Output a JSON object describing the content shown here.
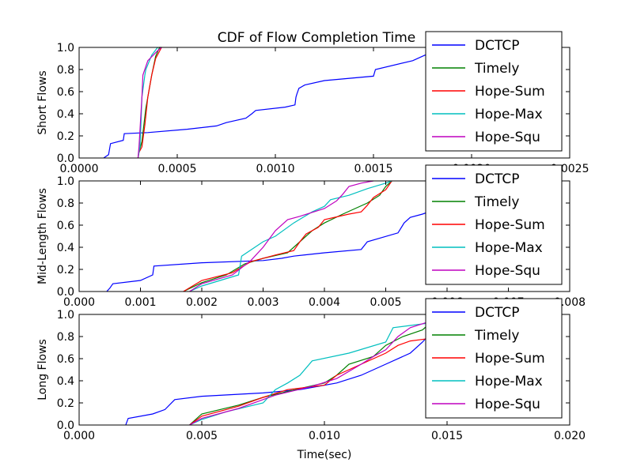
{
  "figure": {
    "title": "CDF of Flow Completion Time",
    "xlabel": "Time(sec)"
  },
  "chart_data": [
    {
      "type": "line",
      "ylabel": "Short Flows",
      "xlim": [
        0,
        0.0025
      ],
      "ylim": [
        0,
        1.0
      ],
      "xticks": [
        "0.0000",
        "0.0005",
        "0.0010",
        "0.0015",
        "0.0020",
        "0.0025"
      ],
      "xtick_values": [
        0,
        0.0005,
        0.001,
        0.0015,
        0.002,
        0.0025
      ],
      "yticks": [
        "0.0",
        "0.2",
        "0.4",
        "0.6",
        "0.8",
        "1.0"
      ],
      "ytick_values": [
        0,
        0.2,
        0.4,
        0.6,
        0.8,
        1.0
      ],
      "legend_position": "top-right",
      "grid": false,
      "series": [
        {
          "name": "DCTCP",
          "color": "#0000ff",
          "points": [
            [
              0.000125,
              0
            ],
            [
              0.00015,
              0.03
            ],
            [
              0.00016,
              0.13
            ],
            [
              0.000225,
              0.16
            ],
            [
              0.00023,
              0.22
            ],
            [
              0.00035,
              0.23
            ],
            [
              0.00055,
              0.26
            ],
            [
              0.0007,
              0.29
            ],
            [
              0.00075,
              0.32
            ],
            [
              0.00085,
              0.36
            ],
            [
              0.00088,
              0.4
            ],
            [
              0.0009,
              0.43
            ],
            [
              0.00105,
              0.46
            ],
            [
              0.0011,
              0.48
            ],
            [
              0.001105,
              0.55
            ],
            [
              0.00111,
              0.58
            ],
            [
              0.00112,
              0.63
            ],
            [
              0.00115,
              0.66
            ],
            [
              0.00125,
              0.7
            ],
            [
              0.0015,
              0.74
            ],
            [
              0.00151,
              0.8
            ],
            [
              0.0017,
              0.88
            ],
            [
              0.00175,
              0.92
            ],
            [
              0.0018,
              0.96
            ]
          ]
        },
        {
          "name": "Timely",
          "color": "#008000",
          "points": [
            [
              0.0003,
              0
            ],
            [
              0.000305,
              0.05
            ],
            [
              0.00032,
              0.15
            ],
            [
              0.00034,
              0.45
            ],
            [
              0.00037,
              0.75
            ],
            [
              0.00039,
              0.92
            ],
            [
              0.00041,
              1.0
            ],
            [
              0.00042,
              1.0
            ]
          ]
        },
        {
          "name": "Hope-Sum",
          "color": "#ff0000",
          "points": [
            [
              0.0003,
              0
            ],
            [
              0.000305,
              0.05
            ],
            [
              0.00032,
              0.1
            ],
            [
              0.000335,
              0.3
            ],
            [
              0.00035,
              0.55
            ],
            [
              0.00037,
              0.75
            ],
            [
              0.00039,
              0.9
            ],
            [
              0.00042,
              1.0
            ]
          ]
        },
        {
          "name": "Hope-Max",
          "color": "#00bfbf",
          "points": [
            [
              0.0003,
              0
            ],
            [
              0.00031,
              0.1
            ],
            [
              0.000315,
              0.3
            ],
            [
              0.00032,
              0.55
            ],
            [
              0.000335,
              0.75
            ],
            [
              0.00034,
              0.8
            ],
            [
              0.00037,
              0.93
            ],
            [
              0.0004,
              1.0
            ]
          ]
        },
        {
          "name": "Hope-Squ",
          "color": "#bf00bf",
          "points": [
            [
              0.0003,
              0
            ],
            [
              0.000305,
              0.1
            ],
            [
              0.00031,
              0.25
            ],
            [
              0.00032,
              0.55
            ],
            [
              0.000325,
              0.75
            ],
            [
              0.00035,
              0.88
            ],
            [
              0.0004,
              0.97
            ],
            [
              0.00042,
              1.0
            ]
          ]
        }
      ]
    },
    {
      "type": "line",
      "ylabel": "Mid-Length Flows",
      "xlim": [
        0,
        0.008
      ],
      "ylim": [
        0,
        1.0
      ],
      "xticks": [
        "0.000",
        "0.001",
        "0.002",
        "0.003",
        "0.004",
        "0.005",
        "0.006",
        "0.007",
        "0.008"
      ],
      "xtick_values": [
        0,
        0.001,
        0.002,
        0.003,
        0.004,
        0.005,
        0.006,
        0.007,
        0.008
      ],
      "yticks": [
        "0.0",
        "0.2",
        "0.4",
        "0.6",
        "0.8",
        "1.0"
      ],
      "ytick_values": [
        0,
        0.2,
        0.4,
        0.6,
        0.8,
        1.0
      ],
      "legend_position": "top-right",
      "grid": false,
      "series": [
        {
          "name": "DCTCP",
          "color": "#0000ff",
          "points": [
            [
              0.00045,
              0
            ],
            [
              0.0005,
              0.03
            ],
            [
              0.00055,
              0.07
            ],
            [
              0.001,
              0.1
            ],
            [
              0.0012,
              0.15
            ],
            [
              0.00122,
              0.23
            ],
            [
              0.002,
              0.26
            ],
            [
              0.003,
              0.28
            ],
            [
              0.0033,
              0.3
            ],
            [
              0.0035,
              0.32
            ],
            [
              0.004,
              0.35
            ],
            [
              0.0046,
              0.38
            ],
            [
              0.0047,
              0.45
            ],
            [
              0.0052,
              0.53
            ],
            [
              0.0053,
              0.62
            ],
            [
              0.0054,
              0.67
            ],
            [
              0.0056,
              0.7
            ],
            [
              0.0057,
              0.72
            ]
          ]
        },
        {
          "name": "Timely",
          "color": "#008000",
          "points": [
            [
              0.0017,
              0
            ],
            [
              0.002,
              0.08
            ],
            [
              0.0024,
              0.15
            ],
            [
              0.0027,
              0.25
            ],
            [
              0.003,
              0.3
            ],
            [
              0.0034,
              0.35
            ],
            [
              0.0036,
              0.45
            ],
            [
              0.0038,
              0.55
            ],
            [
              0.004,
              0.62
            ],
            [
              0.0043,
              0.7
            ],
            [
              0.0045,
              0.75
            ],
            [
              0.0047,
              0.8
            ],
            [
              0.0049,
              0.87
            ],
            [
              0.005,
              0.95
            ],
            [
              0.0051,
              1.0
            ]
          ]
        },
        {
          "name": "Hope-Sum",
          "color": "#ff0000",
          "points": [
            [
              0.0017,
              0
            ],
            [
              0.002,
              0.1
            ],
            [
              0.0025,
              0.17
            ],
            [
              0.0028,
              0.27
            ],
            [
              0.0032,
              0.33
            ],
            [
              0.0035,
              0.37
            ],
            [
              0.0036,
              0.45
            ],
            [
              0.0037,
              0.52
            ],
            [
              0.0039,
              0.58
            ],
            [
              0.004,
              0.65
            ],
            [
              0.0044,
              0.7
            ],
            [
              0.0046,
              0.72
            ],
            [
              0.0047,
              0.78
            ],
            [
              0.0048,
              0.85
            ],
            [
              0.005,
              0.92
            ],
            [
              0.0051,
              1.0
            ]
          ]
        },
        {
          "name": "Hope-Max",
          "color": "#00bfbf",
          "points": [
            [
              0.0018,
              0
            ],
            [
              0.002,
              0.05
            ],
            [
              0.0026,
              0.15
            ],
            [
              0.00265,
              0.32
            ],
            [
              0.003,
              0.45
            ],
            [
              0.0032,
              0.5
            ],
            [
              0.0035,
              0.62
            ],
            [
              0.0038,
              0.72
            ],
            [
              0.004,
              0.77
            ],
            [
              0.0041,
              0.83
            ],
            [
              0.0044,
              0.87
            ],
            [
              0.0047,
              0.93
            ],
            [
              0.005,
              0.98
            ],
            [
              0.0051,
              1.0
            ]
          ]
        },
        {
          "name": "Hope-Squ",
          "color": "#bf00bf",
          "points": [
            [
              0.0018,
              0
            ],
            [
              0.002,
              0.07
            ],
            [
              0.0025,
              0.15
            ],
            [
              0.0028,
              0.28
            ],
            [
              0.003,
              0.4
            ],
            [
              0.0032,
              0.55
            ],
            [
              0.0034,
              0.65
            ],
            [
              0.0036,
              0.68
            ],
            [
              0.004,
              0.75
            ],
            [
              0.0042,
              0.82
            ],
            [
              0.0043,
              0.88
            ],
            [
              0.0044,
              0.95
            ],
            [
              0.0046,
              0.98
            ],
            [
              0.0048,
              1.0
            ]
          ]
        }
      ]
    },
    {
      "type": "line",
      "ylabel": "Long Flows",
      "xlim": [
        0,
        0.02
      ],
      "ylim": [
        0,
        1.0
      ],
      "xticks": [
        "0.000",
        "0.005",
        "0.010",
        "0.015",
        "0.020"
      ],
      "xtick_values": [
        0,
        0.005,
        0.01,
        0.015,
        0.02
      ],
      "yticks": [
        "0.0",
        "0.2",
        "0.4",
        "0.6",
        "0.8",
        "1.0"
      ],
      "ytick_values": [
        0,
        0.2,
        0.4,
        0.6,
        0.8,
        1.0
      ],
      "legend_position": "top-right",
      "grid": false,
      "series": [
        {
          "name": "DCTCP",
          "color": "#0000ff",
          "points": [
            [
              0.0019,
              0
            ],
            [
              0.002,
              0.06
            ],
            [
              0.003,
              0.1
            ],
            [
              0.0035,
              0.14
            ],
            [
              0.0039,
              0.23
            ],
            [
              0.005,
              0.26
            ],
            [
              0.0075,
              0.29
            ],
            [
              0.009,
              0.32
            ],
            [
              0.0105,
              0.38
            ],
            [
              0.0115,
              0.45
            ],
            [
              0.0125,
              0.55
            ],
            [
              0.0135,
              0.65
            ],
            [
              0.014,
              0.75
            ],
            [
              0.0142,
              0.8
            ]
          ]
        },
        {
          "name": "Timely",
          "color": "#008000",
          "points": [
            [
              0.0045,
              0
            ],
            [
              0.005,
              0.1
            ],
            [
              0.0065,
              0.18
            ],
            [
              0.0075,
              0.25
            ],
            [
              0.009,
              0.33
            ],
            [
              0.01,
              0.38
            ],
            [
              0.0105,
              0.45
            ],
            [
              0.011,
              0.55
            ],
            [
              0.012,
              0.62
            ],
            [
              0.0125,
              0.72
            ],
            [
              0.0132,
              0.8
            ],
            [
              0.014,
              0.86
            ],
            [
              0.0142,
              0.9
            ]
          ]
        },
        {
          "name": "Hope-Sum",
          "color": "#ff0000",
          "points": [
            [
              0.0045,
              0
            ],
            [
              0.005,
              0.08
            ],
            [
              0.0065,
              0.17
            ],
            [
              0.0075,
              0.25
            ],
            [
              0.0085,
              0.32
            ],
            [
              0.01,
              0.36
            ],
            [
              0.0105,
              0.45
            ],
            [
              0.0115,
              0.55
            ],
            [
              0.0125,
              0.65
            ],
            [
              0.013,
              0.72
            ],
            [
              0.0135,
              0.76
            ],
            [
              0.0142,
              0.78
            ]
          ]
        },
        {
          "name": "Hope-Max",
          "color": "#00bfbf",
          "points": [
            [
              0.0045,
              0
            ],
            [
              0.005,
              0.05
            ],
            [
              0.006,
              0.12
            ],
            [
              0.0075,
              0.2
            ],
            [
              0.008,
              0.32
            ],
            [
              0.0085,
              0.38
            ],
            [
              0.009,
              0.45
            ],
            [
              0.0095,
              0.58
            ],
            [
              0.011,
              0.65
            ],
            [
              0.0125,
              0.75
            ],
            [
              0.0128,
              0.88
            ],
            [
              0.0135,
              0.9
            ],
            [
              0.0142,
              0.92
            ]
          ]
        },
        {
          "name": "Hope-Squ",
          "color": "#bf00bf",
          "points": [
            [
              0.0045,
              0
            ],
            [
              0.005,
              0.06
            ],
            [
              0.0065,
              0.15
            ],
            [
              0.008,
              0.27
            ],
            [
              0.0095,
              0.35
            ],
            [
              0.0105,
              0.42
            ],
            [
              0.0115,
              0.55
            ],
            [
              0.012,
              0.62
            ],
            [
              0.0125,
              0.68
            ],
            [
              0.013,
              0.8
            ],
            [
              0.0135,
              0.88
            ],
            [
              0.0142,
              0.93
            ]
          ]
        }
      ]
    }
  ]
}
